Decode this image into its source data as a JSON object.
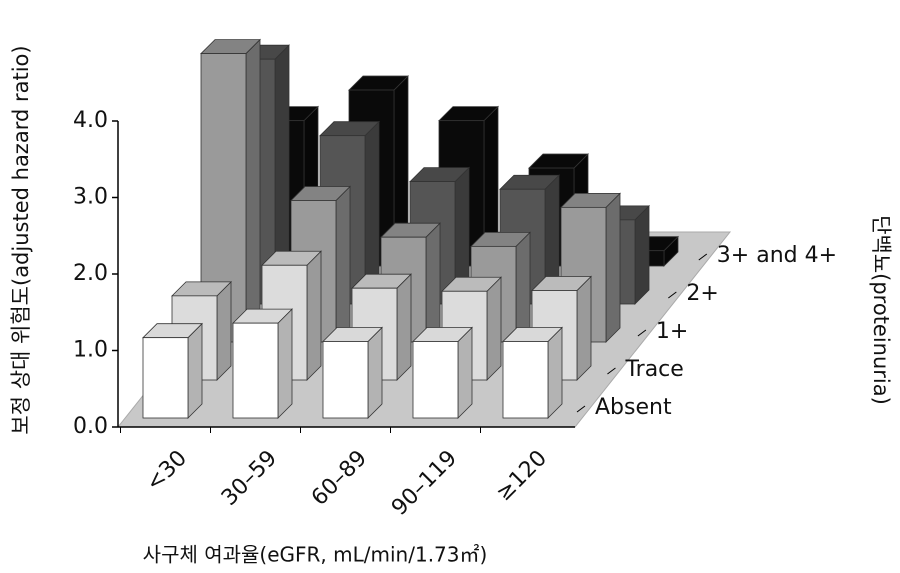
{
  "chart_data": {
    "type": "bar3d",
    "y_label": "보정 상대 위험도(adjusted hazard ratio)",
    "x_label": "사구체 여과율(eGFR, mL/min/1.73㎡)",
    "z_label": "단백뇨(proteinuria)",
    "categories": [
      "<30",
      "30–59",
      "60–89",
      "90–119",
      "≥120"
    ],
    "series": [
      {
        "name": "Absent",
        "color": "#ffffff",
        "values": [
          1.05,
          1.24,
          1.0,
          1.0,
          1.0
        ]
      },
      {
        "name": "Trace",
        "color": "#dcdcdc",
        "values": [
          1.1,
          1.5,
          1.2,
          1.16,
          1.17
        ]
      },
      {
        "name": "1+",
        "color": "#9a9a9a",
        "values": [
          3.77,
          1.85,
          1.37,
          1.25,
          1.76
        ]
      },
      {
        "name": "2+",
        "color": "#555555",
        "values": [
          3.2,
          2.2,
          1.6,
          1.5,
          1.1
        ]
      },
      {
        "name": "3+ and 4+",
        "color": "#0a0a0a",
        "values": [
          1.9,
          2.3,
          1.9,
          1.28,
          0.2
        ]
      }
    ],
    "ylim": [
      0,
      4.0
    ],
    "yticks": [
      {
        "value": 0,
        "label": "0.0"
      },
      {
        "value": 1,
        "label": "1.0"
      },
      {
        "value": 2,
        "label": "2.0"
      },
      {
        "value": 3,
        "label": "3.0"
      },
      {
        "value": 4,
        "label": "4.0"
      }
    ]
  }
}
